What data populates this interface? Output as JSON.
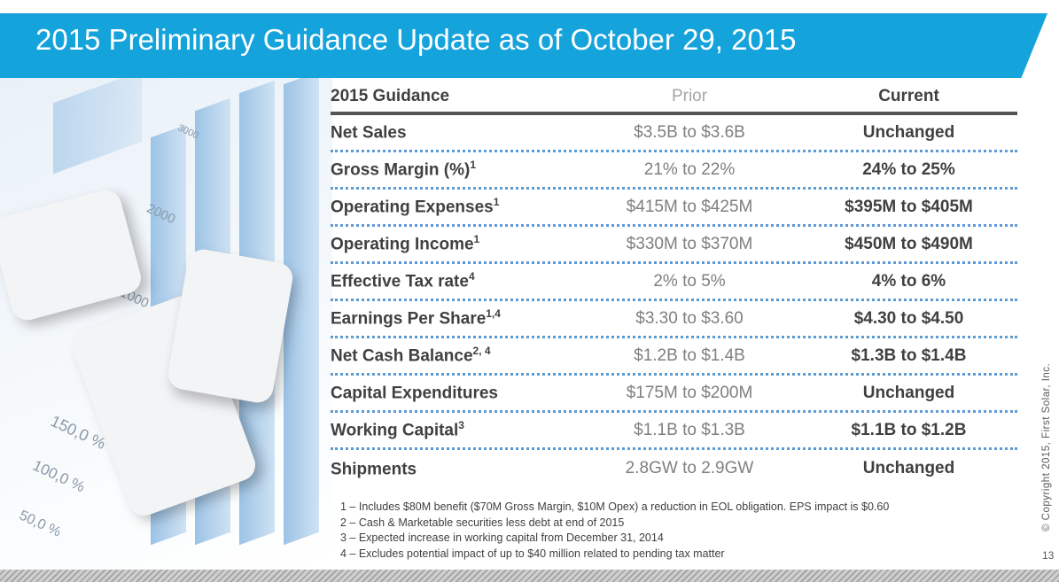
{
  "title": "2015 Preliminary Guidance Update as of October 29, 2015",
  "table": {
    "headers": [
      "2015 Guidance",
      "Prior",
      "Current"
    ],
    "rows": [
      {
        "label": "Net Sales",
        "sup": "",
        "prior": "$3.5B to $3.6B",
        "current": "Unchanged"
      },
      {
        "label": "Gross Margin (%)",
        "sup": "1",
        "prior": "21% to 22%",
        "current": "24% to 25%"
      },
      {
        "label": "Operating Expenses",
        "sup": "1",
        "prior": "$415M to $425M",
        "current": "$395M to $405M"
      },
      {
        "label": "Operating Income",
        "sup": "1",
        "prior": "$330M to $370M",
        "current": "$450M to $490M"
      },
      {
        "label": "Effective Tax rate",
        "sup": "4",
        "prior": "2% to 5%",
        "current": "4% to 6%"
      },
      {
        "label": "Earnings Per Share",
        "sup": "1,4",
        "prior": "$3.30 to $3.60",
        "current": "$4.30 to $4.50"
      },
      {
        "label": "Net Cash Balance",
        "sup": "2, 4",
        "prior": "$1.2B to $1.4B",
        "current": "$1.3B to $1.4B"
      },
      {
        "label": "Capital Expenditures",
        "sup": "",
        "prior": "$175M to $200M",
        "current": "Unchanged"
      },
      {
        "label": "Working Capital",
        "sup": "3",
        "prior": "$1.1B to $1.3B",
        "current": "$1.1B to $1.2B"
      },
      {
        "label": "Shipments",
        "sup": "",
        "prior": "2.8GW to 2.9GW",
        "current": "Unchanged"
      }
    ]
  },
  "footnotes": [
    "1 – Includes $80M benefit ($70M Gross Margin, $10M Opex) a reduction in EOL obligation.  EPS impact is $0.60",
    "2 – Cash & Marketable securities less debt at end of 2015",
    "3 – Expected increase in working capital from December 31, 2014",
    "4 – Excludes potential impact of up to $40 million related to pending tax matter"
  ],
  "image_labels": [
    "3000",
    "2000",
    "1000",
    "150,0 %",
    "100,0 %",
    "50,0 %"
  ],
  "copyright": "© Copyright 2015, First Solar, Inc.",
  "page_number": "13"
}
